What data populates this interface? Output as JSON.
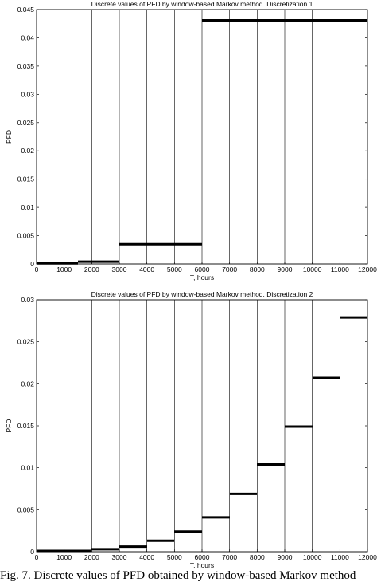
{
  "caption": "Fig. 7. Discrete values of PFD obtained by window-based Markov method",
  "chart_data": [
    {
      "type": "line",
      "title": "Discrete values of PFD by window-based Markov method. Discretization 1",
      "xlabel": "T, hours",
      "ylabel": "PFD",
      "xlim": [
        0,
        12000
      ],
      "ylim": [
        0,
        0.045
      ],
      "grid": "vertical",
      "xticks": [
        0,
        1000,
        2000,
        3000,
        4000,
        5000,
        6000,
        7000,
        8000,
        9000,
        10000,
        11000,
        12000
      ],
      "yticks": [
        0,
        0.005,
        0.01,
        0.015,
        0.02,
        0.025,
        0.03,
        0.035,
        0.04,
        0.045
      ],
      "series": [
        {
          "segments": [
            {
              "x0": 0,
              "x1": 1500,
              "y": 0.0001
            },
            {
              "x0": 1500,
              "x1": 3000,
              "y": 0.0004
            },
            {
              "x0": 3000,
              "x1": 6000,
              "y": 0.0035
            },
            {
              "x0": 6000,
              "x1": 12000,
              "y": 0.0431
            }
          ]
        }
      ]
    },
    {
      "type": "line",
      "title": "Discrete values of PFD by window-based Markov method. Discretization 2",
      "xlabel": "T, hours",
      "ylabel": "PFD",
      "xlim": [
        0,
        12000
      ],
      "ylim": [
        0,
        0.03
      ],
      "grid": "vertical",
      "xticks": [
        0,
        1000,
        2000,
        3000,
        4000,
        5000,
        6000,
        7000,
        8000,
        9000,
        10000,
        11000,
        12000
      ],
      "yticks": [
        0,
        0.005,
        0.01,
        0.015,
        0.02,
        0.025,
        0.03
      ],
      "series": [
        {
          "segments": [
            {
              "x0": 0,
              "x1": 2000,
              "y": 0.0001
            },
            {
              "x0": 2000,
              "x1": 3000,
              "y": 0.0003
            },
            {
              "x0": 3000,
              "x1": 4000,
              "y": 0.0006
            },
            {
              "x0": 4000,
              "x1": 5000,
              "y": 0.0013
            },
            {
              "x0": 5000,
              "x1": 6000,
              "y": 0.0024
            },
            {
              "x0": 6000,
              "x1": 7000,
              "y": 0.0041
            },
            {
              "x0": 7000,
              "x1": 8000,
              "y": 0.0069
            },
            {
              "x0": 8000,
              "x1": 9000,
              "y": 0.0104
            },
            {
              "x0": 9000,
              "x1": 10000,
              "y": 0.0149
            },
            {
              "x0": 10000,
              "x1": 11000,
              "y": 0.0207
            },
            {
              "x0": 11000,
              "x1": 12000,
              "y": 0.0279
            }
          ]
        }
      ]
    }
  ]
}
